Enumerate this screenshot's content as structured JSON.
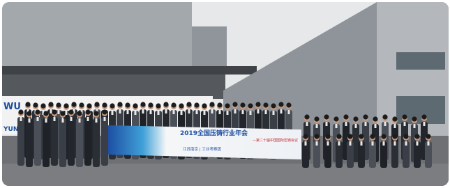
{
  "sign": {
    "logo": "WU",
    "name": "YUNHA"
  },
  "banner": {
    "title": "2019全国压铸行业年会",
    "subtitle": "—第二十届中国国际压铸会议",
    "footer": "江苏南京 | 工业考察团"
  }
}
